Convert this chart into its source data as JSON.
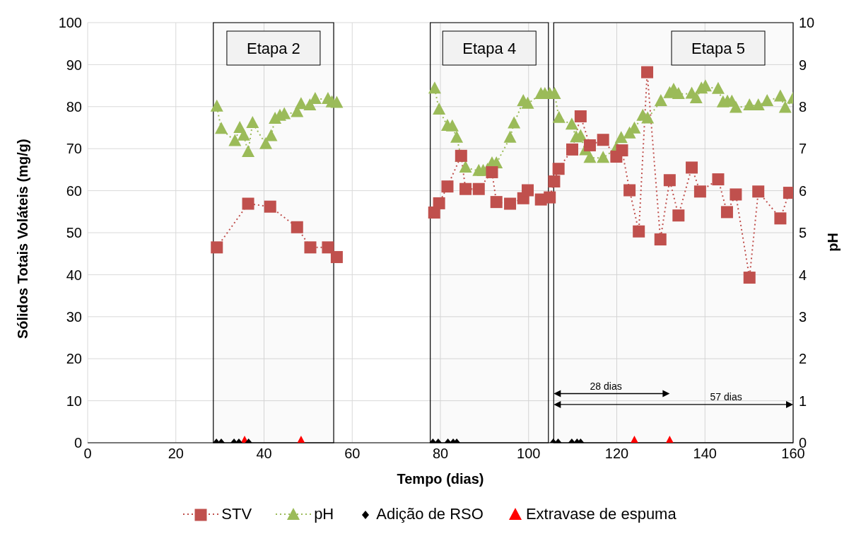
{
  "chart_data": {
    "type": "line",
    "xlabel": "Tempo (dias)",
    "ylabel": "Sólidos Totais Voláteis (mg/g)",
    "y2label": "pH",
    "xlim": [
      0,
      160
    ],
    "xticks": [
      0,
      20,
      40,
      60,
      80,
      100,
      120,
      140,
      160
    ],
    "ylim": [
      0,
      100
    ],
    "yticks": [
      0,
      10,
      20,
      30,
      40,
      50,
      60,
      70,
      80,
      90,
      100
    ],
    "y2lim": [
      0,
      10
    ],
    "y2ticks": [
      0,
      1,
      2,
      3,
      4,
      5,
      6,
      7,
      8,
      9,
      10
    ],
    "grid": true,
    "legend": "bottom",
    "bands": [
      {
        "axis": "x",
        "from": 28.5,
        "to": 55.8,
        "label": "Etapa 2"
      },
      {
        "axis": "x",
        "from": 77.7,
        "to": 104.5,
        "label": "Etapa 4"
      },
      {
        "axis": "x",
        "from": 105.7,
        "to": 160,
        "label": "Etapa 5"
      }
    ],
    "annotations": [
      "28 dias",
      "57 dias"
    ],
    "series": [
      {
        "name": "STV",
        "color": "#c0504d",
        "marker": "square",
        "line_style": "dotted",
        "x": [
          29.3,
          36.4,
          41.4,
          47.5,
          50.5,
          54.5,
          56.5,
          67,
          78.6,
          79.7,
          81.6,
          84.7,
          85.7,
          88.7,
          91.7,
          92.7,
          95.8,
          98.8,
          99.8,
          102.8,
          104.8,
          105.8,
          106.8,
          109.9,
          111.8,
          113.9,
          116.9,
          119.9,
          121.2,
          122.9,
          125,
          126.9,
          129.9,
          132,
          134,
          137,
          138.9,
          143,
          145,
          147,
          150.1,
          152.1,
          157.1,
          159.1
        ],
        "values": [
          46.5,
          56.9,
          56.2,
          51.3,
          46.5,
          46.5,
          44.2,
          null,
          54.8,
          57,
          61,
          68.3,
          60.4,
          60.4,
          64.4,
          57.3,
          56.9,
          58.2,
          60.1,
          57.9,
          58.4,
          62.2,
          65.2,
          69.8,
          77.7,
          70.8,
          72.1,
          68.1,
          69.6,
          60.1,
          50.3,
          88.2,
          48.4,
          62.5,
          54.1,
          65.5,
          59.8,
          62.7,
          54.9,
          59.1,
          39.3,
          59.8,
          53.4,
          59.5
        ]
      },
      {
        "name": "pH",
        "axis": "y2",
        "color": "#9bbb59",
        "marker": "triangle",
        "line_style": "dotted",
        "x": [
          29.3,
          30.3,
          33.4,
          34.5,
          35.4,
          36.4,
          37.4,
          40.4,
          41.6,
          42.5,
          43.6,
          44.6,
          47.5,
          48.4,
          50.4,
          51.6,
          54.5,
          55.4,
          56.5,
          67,
          78.7,
          79.7,
          81.6,
          82.7,
          83.7,
          84.7,
          85.7,
          88.7,
          89.7,
          90.7,
          91.7,
          92.7,
          95.8,
          96.7,
          98.8,
          99.8,
          102.8,
          103.7,
          104.8,
          105.9,
          106.9,
          109.8,
          110.8,
          111.8,
          112.9,
          113.9,
          116.9,
          119.9,
          121,
          122.9,
          124,
          125.9,
          127,
          130,
          132,
          132.9,
          134,
          137,
          138,
          139.2,
          140.1,
          143,
          144.1,
          145.1,
          146.1,
          147,
          150.1,
          152.1,
          154.1,
          157.1,
          158.2,
          160
        ],
        "values": [
          8,
          7.47,
          7.18,
          7.49,
          7.31,
          6.92,
          7.61,
          7.11,
          7.3,
          7.71,
          7.78,
          7.82,
          7.87,
          8.06,
          8.03,
          8.18,
          8.18,
          8.1,
          8.09,
          null,
          8.43,
          7.93,
          7.54,
          7.53,
          7.26,
          6.81,
          6.55,
          6.47,
          6.47,
          6.5,
          6.65,
          6.65,
          7.26,
          7.6,
          8.13,
          8.07,
          8.3,
          8.3,
          8.3,
          8.3,
          7.73,
          7.57,
          7.27,
          7.3,
          6.96,
          6.78,
          6.78,
          7.01,
          7.25,
          7.36,
          7.48,
          7.78,
          7.72,
          8.13,
          8.32,
          8.4,
          8.3,
          8.31,
          8.2,
          8.43,
          8.48,
          8.42,
          8.1,
          8.12,
          8.12,
          7.97,
          8.03,
          8.03,
          8.13,
          8.24,
          7.97,
          8.19
        ]
      },
      {
        "name": "Adição de RSO",
        "type": "scatter",
        "color": "#000000",
        "marker": "diamond",
        "x": [
          29.2,
          30.3,
          33.2,
          34.3,
          36.5,
          78.3,
          79.5,
          81.7,
          82.9,
          83.7,
          105.6,
          106.7,
          109.8,
          111,
          111.8
        ],
        "values": [
          0,
          0,
          0,
          0,
          0,
          0,
          0,
          0,
          0,
          0,
          0,
          0,
          0,
          0,
          0
        ]
      },
      {
        "name": "Extravase de espuma",
        "type": "scatter",
        "color": "#ff0000",
        "marker": "triangle",
        "x": [
          35.6,
          48.4,
          124,
          132
        ],
        "values": [
          0,
          0,
          0,
          0
        ]
      }
    ]
  }
}
